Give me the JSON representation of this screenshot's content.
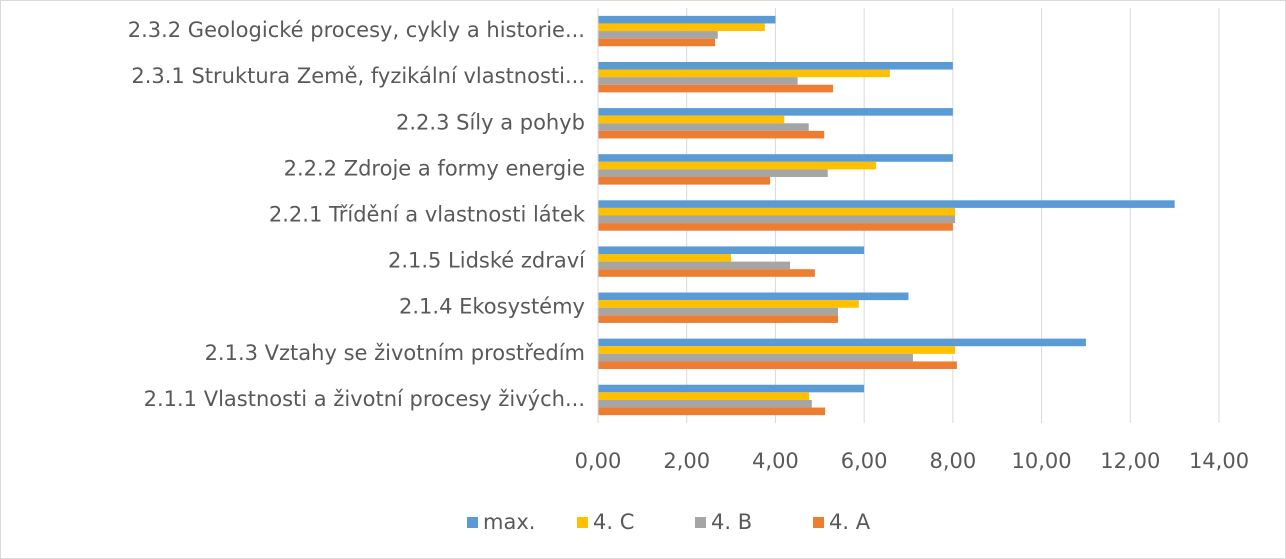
{
  "chart_data": {
    "type": "hbar",
    "categories": [
      "2.3.2 Geologické procesy, cykly a historie...",
      "2.3.1 Struktura Země, fyzikální vlastnosti...",
      "2.2.3 Síly a pohyb",
      "2.2.2 Zdroje a formy energie",
      "2.2.1 Třídění a vlastnosti látek",
      "2.1.5 Lidské zdraví",
      "2.1.4 Ekosystémy",
      "2.1.3 Vztahy se životním prostředím",
      "2.1.1 Vlastnosti a životní procesy živých..."
    ],
    "series": [
      {
        "name": "max.",
        "color": "#5b9bd5",
        "values": [
          4,
          8,
          8,
          8,
          13,
          6,
          7,
          11,
          6
        ]
      },
      {
        "name": "4. C",
        "color": "#ffc000",
        "values": [
          3.76,
          6.58,
          4.2,
          6.27,
          8.05,
          3,
          5.88,
          8.05,
          4.76
        ]
      },
      {
        "name": "4. B",
        "color": "#a5a5a5",
        "values": [
          2.7,
          4.5,
          4.75,
          5.18,
          8.05,
          4.33,
          5.41,
          7.1,
          4.82
        ]
      },
      {
        "name": "4. A",
        "color": "#ed7d31",
        "values": [
          2.64,
          5.3,
          5.1,
          3.88,
          8,
          4.89,
          5.41,
          8.09,
          5.12
        ]
      }
    ],
    "xlim": [
      0,
      14
    ],
    "xticks": [
      {
        "value": 0,
        "label": "0,00"
      },
      {
        "value": 2,
        "label": "2,00"
      },
      {
        "value": 4,
        "label": "4,00"
      },
      {
        "value": 6,
        "label": "6,00"
      },
      {
        "value": 8,
        "label": "8,00"
      },
      {
        "value": 10,
        "label": "10,00"
      },
      {
        "value": 12,
        "label": "12,00"
      },
      {
        "value": 14,
        "label": "14,00"
      }
    ],
    "grid": true,
    "legend": "bottom"
  }
}
